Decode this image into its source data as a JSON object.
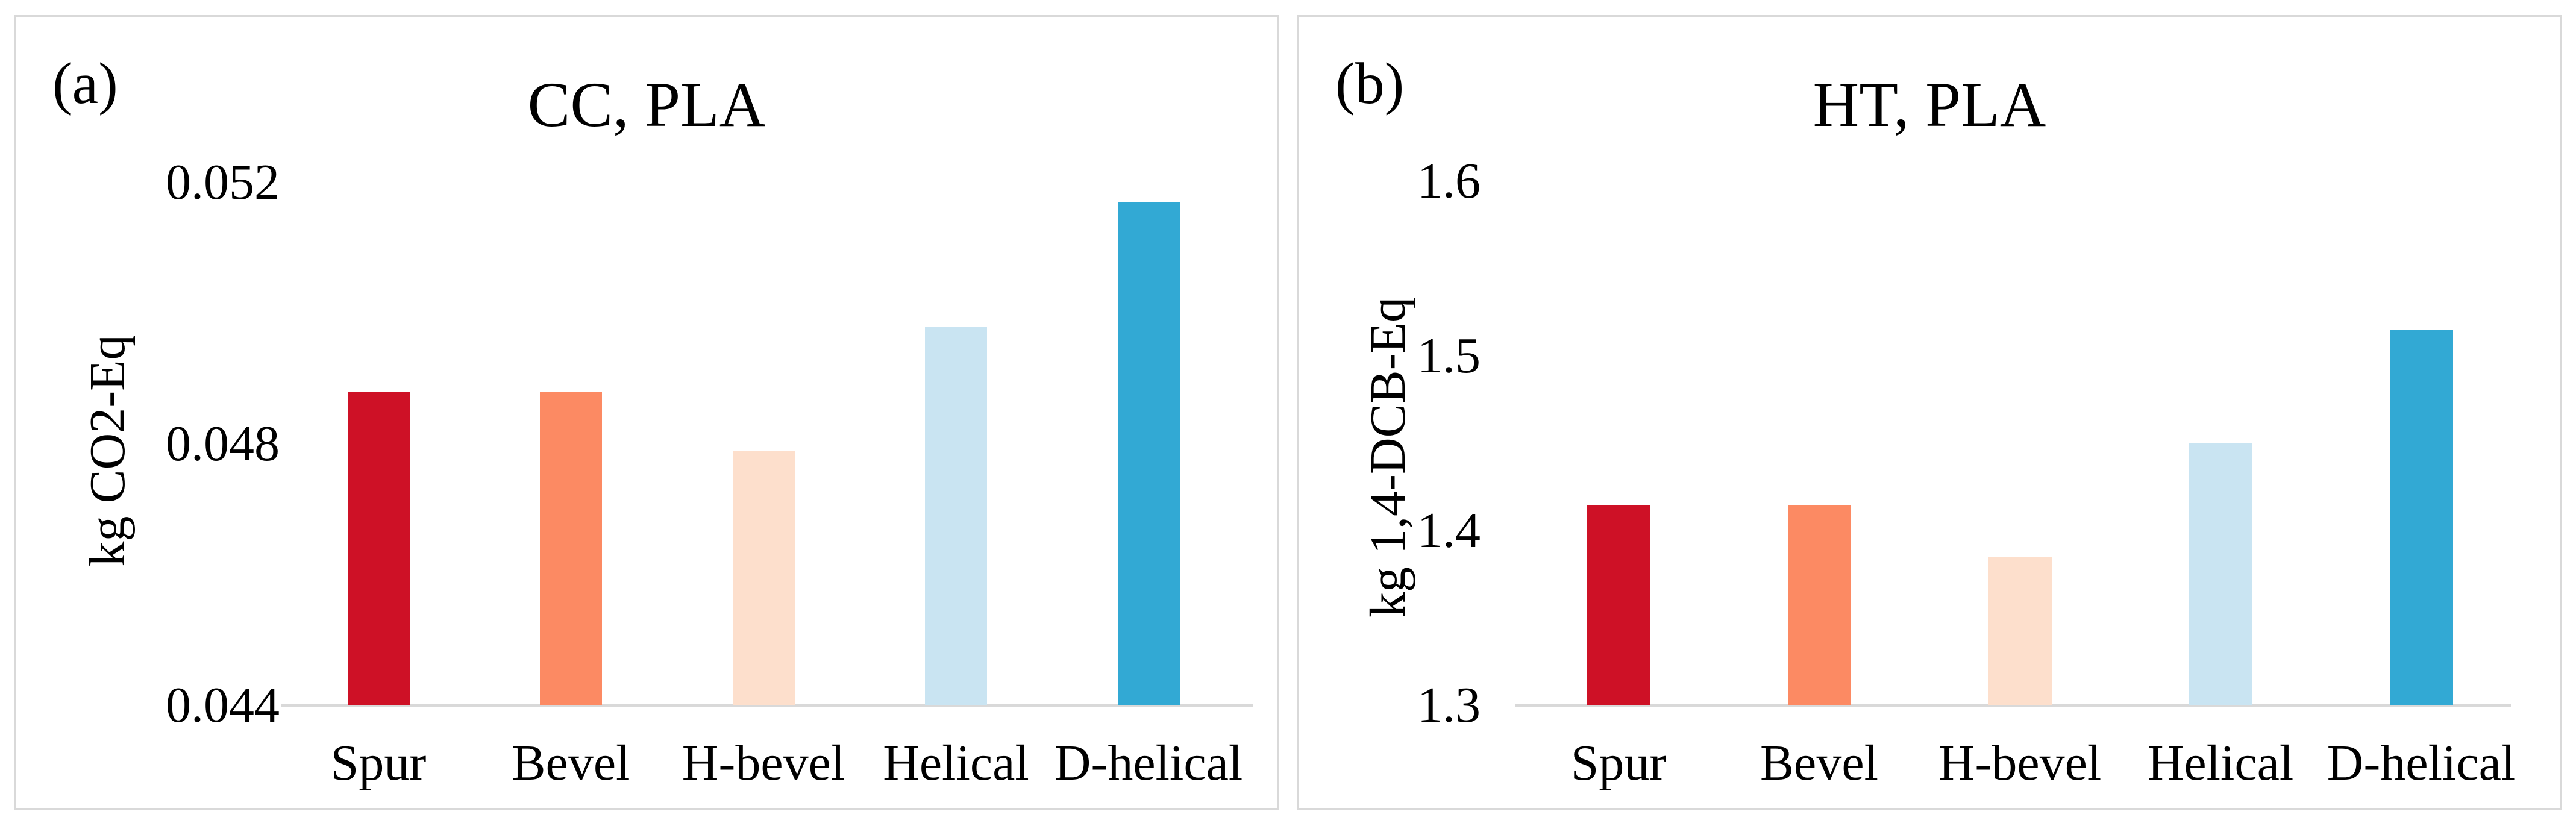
{
  "figure": {
    "background_color": "#ffffff",
    "panel_border_color": "#d9d9d9",
    "axis_line_color": "#d9d9d9",
    "text_color": "#000000"
  },
  "chart_data": [
    {
      "type": "bar",
      "panel_label": "(a)",
      "title": "CC, PLA",
      "xlabel": "",
      "ylabel": "kg CO2-Eq",
      "categories": [
        "Spur",
        "Bevel",
        "H-bevel",
        "Helical",
        "D-helical"
      ],
      "values": [
        0.0488,
        0.0488,
        0.0479,
        0.0498,
        0.0517
      ],
      "bar_colors": [
        "#ce1126",
        "#fc8a63",
        "#fddfcc",
        "#c9e4f2",
        "#32a9d4"
      ],
      "ylim": [
        0.044,
        0.052
      ],
      "yticks": [
        0.044,
        0.048,
        0.052
      ],
      "ytick_labels": [
        "0.044",
        "0.048",
        "0.052"
      ],
      "grid": false,
      "legend": "none"
    },
    {
      "type": "bar",
      "panel_label": "(b)",
      "title": "HT, PLA",
      "xlabel": "",
      "ylabel": "kg 1,4-DCB-Eq",
      "categories": [
        "Spur",
        "Bevel",
        "H-bevel",
        "Helical",
        "D-helical"
      ],
      "values": [
        1.415,
        1.415,
        1.385,
        1.45,
        1.515
      ],
      "bar_colors": [
        "#ce1126",
        "#fc8a63",
        "#fddfcc",
        "#c9e4f2",
        "#32a9d4"
      ],
      "ylim": [
        1.3,
        1.6
      ],
      "yticks": [
        1.3,
        1.4,
        1.5,
        1.6
      ],
      "ytick_labels": [
        "1.3",
        "1.4",
        "1.5",
        "1.6"
      ],
      "grid": false,
      "legend": "none"
    }
  ]
}
